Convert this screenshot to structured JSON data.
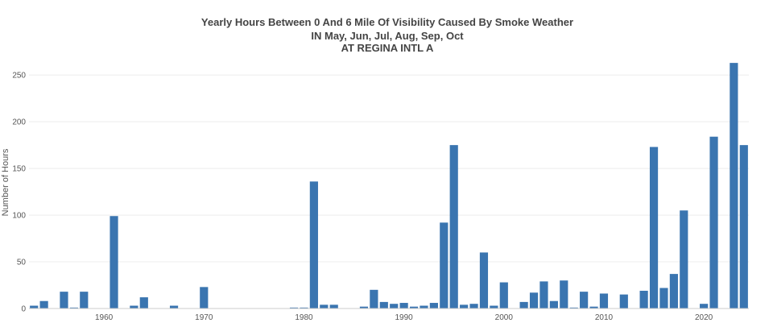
{
  "chart_data": {
    "type": "bar",
    "title": [
      "Yearly Hours Between 0 And 6 Mile Of Visibility Caused By Smoke Weather",
      "IN May, Jun, Jul, Aug, Sep, Oct",
      "AT REGINA INTL A"
    ],
    "ylabel": "Number of Hours",
    "xlabel": "",
    "xlim": [
      1952.5,
      2024.5
    ],
    "ylim": [
      0,
      270
    ],
    "x_ticks": [
      1960,
      1970,
      1980,
      1990,
      2000,
      2010,
      2020
    ],
    "y_ticks": [
      0,
      50,
      100,
      150,
      200,
      250
    ],
    "bar_color": "#3a75b0",
    "grid": true,
    "series": [
      {
        "x": [
          1953,
          1954,
          1956,
          1957,
          1958,
          1961,
          1963,
          1964,
          1967,
          1970,
          1979,
          1980,
          1981,
          1982,
          1983,
          1986,
          1987,
          1988,
          1989,
          1990,
          1991,
          1992,
          1993,
          1994,
          1995,
          1996,
          1997,
          1998,
          1999,
          2000,
          2002,
          2003,
          2004,
          2005,
          2006,
          2007,
          2008,
          2009,
          2010,
          2012,
          2014,
          2015,
          2016,
          2017,
          2018,
          2020,
          2021,
          2023,
          2024
        ],
        "y": [
          3,
          8,
          18,
          1,
          18,
          99,
          3,
          12,
          3,
          23,
          1,
          1,
          136,
          4,
          4,
          2,
          20,
          7,
          5,
          6,
          2,
          3,
          6,
          92,
          175,
          4,
          5,
          60,
          3,
          28,
          7,
          17,
          29,
          8,
          30,
          1,
          18,
          2,
          16,
          15,
          19,
          173,
          22,
          37,
          105,
          5,
          184,
          263,
          175
        ]
      }
    ]
  }
}
